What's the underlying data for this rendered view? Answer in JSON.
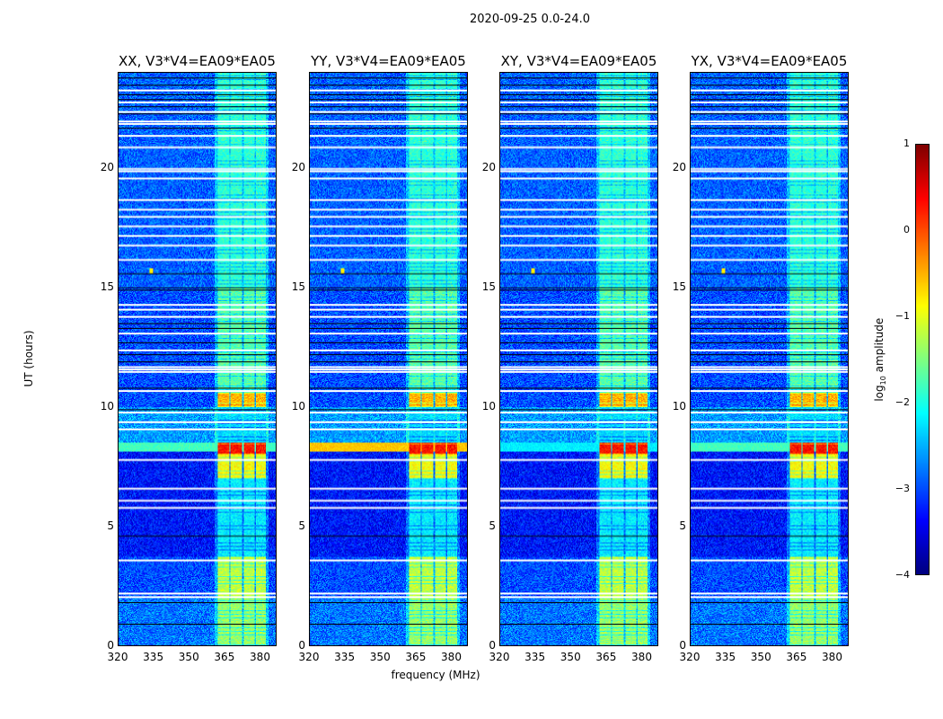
{
  "suptitle": "2020-09-25 0.0-24.0",
  "chart_data": {
    "type": "heatmap",
    "title": "2020-09-25 0.0-24.0",
    "xlabel": "frequency (MHz)",
    "ylabel": "UT (hours)",
    "xlim": [
      320,
      387
    ],
    "ylim": [
      0,
      24
    ],
    "xticks": [
      "320",
      "335",
      "350",
      "365",
      "380"
    ],
    "xtick_values": [
      320,
      335,
      350,
      365,
      380
    ],
    "yticks": [
      "0",
      "5",
      "10",
      "15",
      "20"
    ],
    "ytick_values": [
      0,
      5,
      10,
      15,
      20
    ],
    "panels": [
      {
        "title": "XX, V3*V4=EA09*EA05",
        "broadband_8h_level": -1.8
      },
      {
        "title": "YY, V3*V4=EA09*EA05",
        "broadband_8h_level": -0.6
      },
      {
        "title": "XY, V3*V4=EA09*EA05",
        "broadband_8h_level": -2.2
      },
      {
        "title": "YX, V3*V4=EA09*EA05",
        "broadband_8h_level": -1.8
      }
    ],
    "rfi_subbands_mhz": [
      [
        362.5,
        367.4
      ],
      [
        367.8,
        372.5
      ],
      [
        373.2,
        377.8
      ],
      [
        378.5,
        383
      ]
    ],
    "time_segments": [
      {
        "t": [
          0,
          2
        ],
        "background": -2.8,
        "rfi": -1.4
      },
      {
        "t": [
          2,
          3.7
        ],
        "background": -3.0,
        "rfi": -1.2
      },
      {
        "t": [
          3.7,
          7
        ],
        "background": -3.3,
        "rfi": -2.2
      },
      {
        "t": [
          7,
          8
        ],
        "background": -3.3,
        "rfi": -0.9
      },
      {
        "t": [
          8,
          8.5
        ],
        "background": -3.3,
        "rfi": 0.3
      },
      {
        "t": [
          8.5,
          10
        ],
        "background": -2.6,
        "rfi": -2.3
      },
      {
        "t": [
          10,
          10.6
        ],
        "background": -3.0,
        "rfi": -0.5
      },
      {
        "t": [
          10.6,
          15
        ],
        "background": -3.0,
        "rfi": -1.7
      },
      {
        "t": [
          15,
          24
        ],
        "background": -2.9,
        "rfi": -1.9
      }
    ],
    "colorbar": {
      "label_prefix": "log",
      "label_sub": "10",
      "label_suffix": " amplitude",
      "colormap": "jet",
      "range": [
        -4,
        1
      ],
      "ticks": [
        "1",
        "0",
        "−1",
        "−2",
        "−3",
        "−4"
      ],
      "tick_values": [
        1,
        0,
        -1,
        -2,
        -3,
        -4
      ]
    }
  }
}
